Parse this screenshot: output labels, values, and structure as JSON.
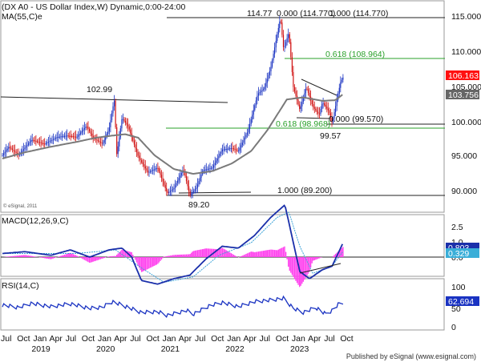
{
  "header": {
    "title": "(DX A0 - US Dollar Index,W) Dynamic,0:00-24:00",
    "ma_label": "MA(55,C)e"
  },
  "watermark": "© eSignal, 2011",
  "footer": "Published by eSignal (www.esignal.com)",
  "colors": {
    "up": "#1a33c2",
    "down": "#d01010",
    "ma": "#7a7a7a",
    "macd": "#1a2faa",
    "signal": "#3da3d8",
    "hist": "#ff44ee",
    "fib": "#2aa02a",
    "rsi": "#1a33c2",
    "last_price_bg": "#ff1010",
    "ma_price_bg": "#666666",
    "macd_bg": "#1a2faa",
    "signal_bg": "#3aaed8",
    "rsi_bg": "#1a33c2"
  },
  "price_axis": {
    "min": 87,
    "max": 118,
    "ticks": [
      "115.000",
      "110.000",
      "105.000",
      "100.000",
      "95.000",
      "90.000"
    ]
  },
  "x_axis": {
    "month_labels": [
      "Jul",
      "Oct",
      "Jan",
      "Apr",
      "Jul",
      "Oct",
      "Jan",
      "Apr",
      "Jul",
      "Oct",
      "Jan",
      "Apr",
      "Jul",
      "Oct",
      "Jan",
      "Apr",
      "Jul",
      "Oct",
      "Jan",
      "Apr",
      "Jul",
      "Oct"
    ],
    "year_labels": [
      "2019",
      "2020",
      "2021",
      "2022",
      "2023"
    ]
  },
  "annotations": {
    "peak_2020": "102.99",
    "peak_2022": "114.77",
    "low_2021": "89.20",
    "low_2023": "99.57",
    "fib_0_top": "0.000 (114.770)",
    "fib_1_top": "1.000 (114.770)",
    "fib_618_upper": "0.618 (108.964)",
    "fib_0_mid": "0.000 (99.570)",
    "fib_618_lower": "0.618 (98.968)",
    "fib_1_low": "1.000 (89.200)"
  },
  "price_tags": {
    "last": "106.163",
    "ma": "103.756"
  },
  "macd_panel": {
    "label": "MACD(12,26,9,C)",
    "axis_ticks": [
      "2.5",
      "1.0",
      "0.0"
    ],
    "tags": {
      "macd": "0.803",
      "signal": "0.329"
    }
  },
  "rsi_panel": {
    "label": "RSI(14,C)",
    "axis_ticks": [
      "100",
      "50",
      "0"
    ],
    "tag": "62.694"
  },
  "chart_data": [
    {
      "type": "line",
      "title": "(DX A0 - US Dollar Index,W) Dynamic,0:00-24:00",
      "x_start": "2018-06",
      "x_end": "2023-10",
      "series": [
        {
          "name": "MA(55,C)e",
          "values": [
            [
              2018.45,
              94.5
            ],
            [
              2018.8,
              95.4
            ],
            [
              2019.2,
              96.2
            ],
            [
              2019.6,
              96.9
            ],
            [
              2019.9,
              97.5
            ],
            [
              2020.15,
              97.8
            ],
            [
              2020.35,
              98.0
            ],
            [
              2020.55,
              97.5
            ],
            [
              2020.8,
              95.0
            ],
            [
              2021.1,
              93.0
            ],
            [
              2021.4,
              92.3
            ],
            [
              2021.7,
              92.7
            ],
            [
              2022.0,
              93.8
            ],
            [
              2022.3,
              95.6
            ],
            [
              2022.55,
              98.6
            ],
            [
              2022.85,
              103.0
            ],
            [
              2023.1,
              103.3
            ],
            [
              2023.4,
              102.8
            ],
            [
              2023.6,
              102.9
            ],
            [
              2023.72,
              103.756
            ]
          ]
        }
      ],
      "price_path": [
        [
          2018.45,
          95.0
        ],
        [
          2018.55,
          96.2
        ],
        [
          2018.7,
          95.0
        ],
        [
          2018.9,
          97.2
        ],
        [
          2019.1,
          96.6
        ],
        [
          2019.3,
          97.6
        ],
        [
          2019.45,
          97.8
        ],
        [
          2019.6,
          97.6
        ],
        [
          2019.75,
          99.2
        ],
        [
          2019.85,
          97.5
        ],
        [
          2020.0,
          96.6
        ],
        [
          2020.1,
          98.8
        ],
        [
          2020.18,
          102.99
        ],
        [
          2020.22,
          95.0
        ],
        [
          2020.3,
          100.4
        ],
        [
          2020.4,
          99.0
        ],
        [
          2020.55,
          94.8
        ],
        [
          2020.7,
          92.5
        ],
        [
          2020.85,
          93.2
        ],
        [
          2021.0,
          89.5
        ],
        [
          2021.1,
          90.2
        ],
        [
          2021.25,
          93.0
        ],
        [
          2021.35,
          89.2
        ],
        [
          2021.45,
          90.3
        ],
        [
          2021.55,
          92.8
        ],
        [
          2021.7,
          93.2
        ],
        [
          2021.85,
          95.8
        ],
        [
          2022.0,
          96.0
        ],
        [
          2022.1,
          95.6
        ],
        [
          2022.25,
          98.5
        ],
        [
          2022.4,
          103.8
        ],
        [
          2022.5,
          104.6
        ],
        [
          2022.6,
          107.5
        ],
        [
          2022.75,
          114.77
        ],
        [
          2022.8,
          110.2
        ],
        [
          2022.88,
          112.6
        ],
        [
          2022.95,
          104.8
        ],
        [
          2023.05,
          101.5
        ],
        [
          2023.15,
          104.8
        ],
        [
          2023.25,
          102.0
        ],
        [
          2023.35,
          100.8
        ],
        [
          2023.4,
          102.6
        ],
        [
          2023.5,
          101.3
        ],
        [
          2023.55,
          99.57
        ],
        [
          2023.62,
          102.8
        ],
        [
          2023.68,
          105.5
        ],
        [
          2023.72,
          106.163
        ]
      ],
      "ylim": [
        87,
        118
      ]
    },
    {
      "type": "line",
      "title": "MACD(12,26,9,C)",
      "series": [
        {
          "name": "MACD",
          "values": [
            [
              2018.45,
              0.2
            ],
            [
              2018.8,
              0.3
            ],
            [
              2019.2,
              0.1
            ],
            [
              2019.5,
              0.4
            ],
            [
              2019.8,
              0.0
            ],
            [
              2020.1,
              0.4
            ],
            [
              2020.3,
              0.5
            ],
            [
              2020.45,
              0.0
            ],
            [
              2020.6,
              -1.3
            ],
            [
              2020.85,
              -1.5
            ],
            [
              2021.1,
              -1.2
            ],
            [
              2021.35,
              -1.0
            ],
            [
              2021.6,
              -0.1
            ],
            [
              2021.85,
              0.6
            ],
            [
              2022.1,
              0.5
            ],
            [
              2022.35,
              1.2
            ],
            [
              2022.6,
              2.2
            ],
            [
              2022.82,
              2.9
            ],
            [
              2022.95,
              0.8
            ],
            [
              2023.05,
              -0.8
            ],
            [
              2023.2,
              -1.2
            ],
            [
              2023.4,
              -0.7
            ],
            [
              2023.55,
              -0.5
            ],
            [
              2023.72,
              0.803
            ]
          ]
        },
        {
          "name": "Signal",
          "values": [
            [
              2018.45,
              0.2
            ],
            [
              2019.0,
              0.2
            ],
            [
              2019.6,
              0.2
            ],
            [
              2020.2,
              0.4
            ],
            [
              2020.6,
              -0.6
            ],
            [
              2020.95,
              -1.4
            ],
            [
              2021.4,
              -1.1
            ],
            [
              2021.8,
              0.1
            ],
            [
              2022.3,
              0.8
            ],
            [
              2022.7,
              2.2
            ],
            [
              2022.88,
              2.5
            ],
            [
              2023.05,
              0.6
            ],
            [
              2023.25,
              -0.9
            ],
            [
              2023.55,
              -0.5
            ],
            [
              2023.72,
              0.329
            ]
          ]
        }
      ],
      "ylim": [
        -1.8,
        3.2
      ]
    },
    {
      "type": "line",
      "title": "RSI(14,C)",
      "series": [
        {
          "name": "RSI",
          "values": [
            [
              2018.45,
              58
            ],
            [
              2018.7,
              52
            ],
            [
              2018.9,
              62
            ],
            [
              2019.2,
              54
            ],
            [
              2019.5,
              61
            ],
            [
              2019.8,
              50
            ],
            [
              2020.0,
              53
            ],
            [
              2020.15,
              66
            ],
            [
              2020.3,
              58
            ],
            [
              2020.6,
              40
            ],
            [
              2020.85,
              42
            ],
            [
              2021.0,
              33
            ],
            [
              2021.3,
              45
            ],
            [
              2021.4,
              36
            ],
            [
              2021.65,
              56
            ],
            [
              2021.85,
              64
            ],
            [
              2022.1,
              54
            ],
            [
              2022.35,
              66
            ],
            [
              2022.6,
              70
            ],
            [
              2022.8,
              74
            ],
            [
              2022.95,
              50
            ],
            [
              2023.1,
              40
            ],
            [
              2023.3,
              52
            ],
            [
              2023.45,
              36
            ],
            [
              2023.55,
              45
            ],
            [
              2023.65,
              60
            ],
            [
              2023.72,
              62.694
            ]
          ]
        }
      ],
      "ylim": [
        0,
        100
      ]
    }
  ]
}
